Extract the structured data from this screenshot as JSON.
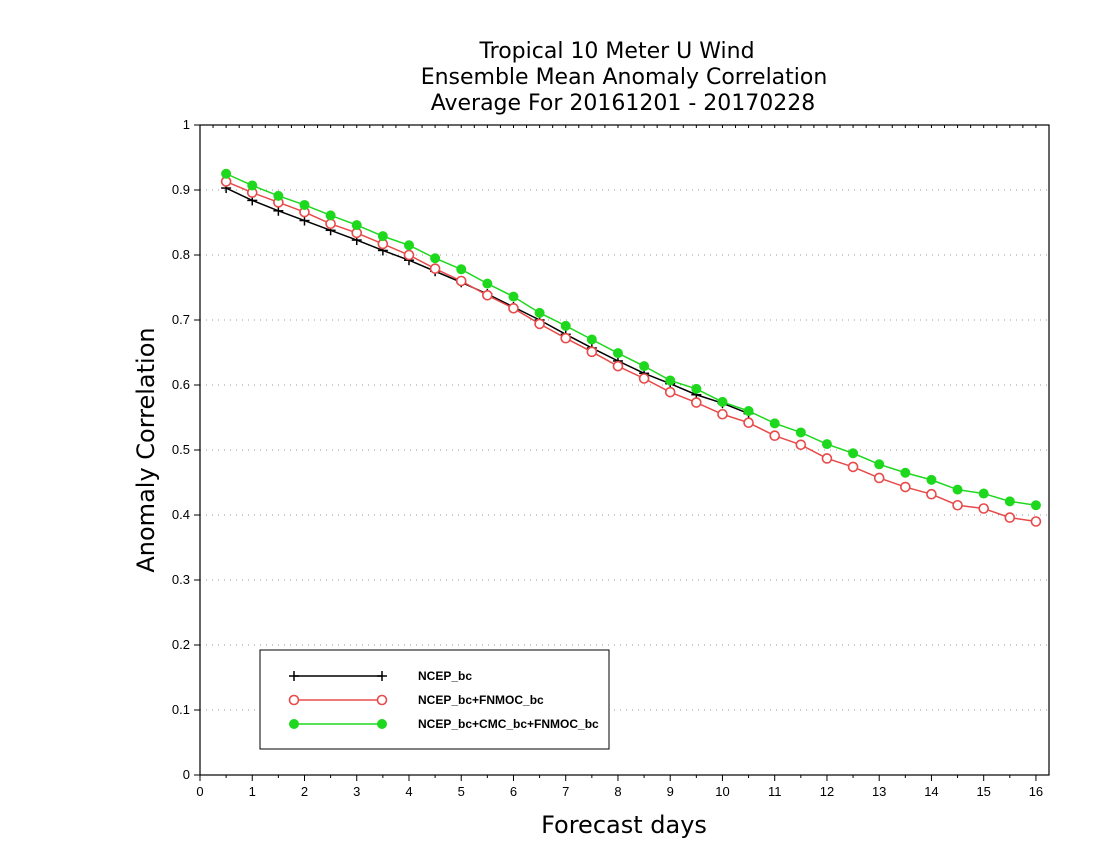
{
  "chart_data": {
    "type": "line",
    "title": [
      "Tropical 10 Meter U Wind",
      "Ensemble Mean Anomaly Correlation",
      "Average For 20161201 - 20170228"
    ],
    "xlabel": "Forecast days",
    "ylabel": "Anomaly Correlation",
    "xlim": [
      0,
      16.25
    ],
    "ylim": [
      0,
      1
    ],
    "xticks": [
      "0",
      "1",
      "2",
      "3",
      "4",
      "5",
      "6",
      "7",
      "8",
      "9",
      "10",
      "11",
      "12",
      "13",
      "14",
      "15",
      "16"
    ],
    "yticks": [
      "0",
      "0.1",
      "0.2",
      "0.3",
      "0.4",
      "0.5",
      "0.6",
      "0.7",
      "0.8",
      "0.9",
      "1"
    ],
    "grid": "horizontal dotted",
    "legend_position": "bottom-left",
    "x": [
      0.5,
      1,
      1.5,
      2,
      2.5,
      3,
      3.5,
      4,
      4.5,
      5,
      5.5,
      6,
      6.5,
      7,
      7.5,
      8,
      8.5,
      9,
      9.5,
      10,
      10.5,
      11,
      11.5,
      12,
      12.5,
      13,
      13.5,
      14,
      14.5,
      15,
      15.5,
      16
    ],
    "series": [
      {
        "name": "NCEP_bc",
        "color": "#000000",
        "marker": "plus",
        "values": [
          0.903,
          0.884,
          0.868,
          0.853,
          0.838,
          0.823,
          0.807,
          0.792,
          0.775,
          0.758,
          0.74,
          0.72,
          0.7,
          0.678,
          0.657,
          0.637,
          0.618,
          0.602,
          0.585,
          0.572,
          0.556,
          null,
          null,
          null,
          null,
          null,
          null,
          null,
          null,
          null,
          null,
          null
        ]
      },
      {
        "name": "NCEP_bc+FNMOC_bc",
        "color": "#e84a4a",
        "marker": "open-circle",
        "values": [
          0.913,
          0.896,
          0.881,
          0.866,
          0.848,
          0.834,
          0.817,
          0.8,
          0.779,
          0.76,
          0.738,
          0.718,
          0.694,
          0.672,
          0.651,
          0.629,
          0.61,
          0.589,
          0.573,
          0.555,
          0.542,
          0.522,
          0.508,
          0.487,
          0.474,
          0.457,
          0.443,
          0.432,
          0.415,
          0.41,
          0.396,
          0.39
        ]
      },
      {
        "name": "NCEP_bc+CMC_bc+FNMOC_bc",
        "color": "#1ed81e",
        "marker": "filled-circle",
        "values": [
          0.925,
          0.907,
          0.891,
          0.877,
          0.861,
          0.846,
          0.829,
          0.815,
          0.795,
          0.778,
          0.756,
          0.736,
          0.711,
          0.691,
          0.67,
          0.649,
          0.629,
          0.607,
          0.594,
          0.574,
          0.56,
          0.541,
          0.527,
          0.509,
          0.495,
          0.478,
          0.465,
          0.454,
          0.439,
          0.433,
          0.421,
          0.415
        ]
      }
    ]
  }
}
